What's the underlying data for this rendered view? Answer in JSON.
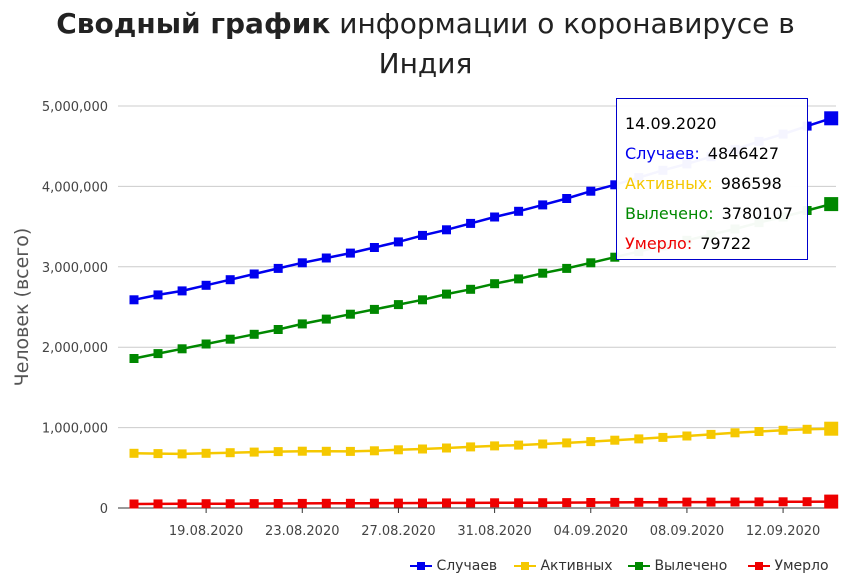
{
  "title_bold": "Сводный график",
  "title_rest": " информации о коронавирусе в",
  "title_line2": "Индия",
  "chart_data": {
    "type": "line",
    "ylabel": "Человек (всего)",
    "xlabel": "",
    "ylim": [
      0,
      5000000
    ],
    "yticks": [
      "0",
      "1,000,000",
      "2,000,000",
      "3,000,000",
      "4,000,000",
      "5,000,000"
    ],
    "xticks": [
      "19.08.2020",
      "23.08.2020",
      "27.08.2020",
      "31.08.2020",
      "04.09.2020",
      "08.09.2020",
      "12.09.2020"
    ],
    "x": [
      "16.08.2020",
      "17.08.2020",
      "18.08.2020",
      "19.08.2020",
      "20.08.2020",
      "21.08.2020",
      "22.08.2020",
      "23.08.2020",
      "24.08.2020",
      "25.08.2020",
      "26.08.2020",
      "27.08.2020",
      "28.08.2020",
      "29.08.2020",
      "30.08.2020",
      "31.08.2020",
      "01.09.2020",
      "02.09.2020",
      "03.09.2020",
      "04.09.2020",
      "05.09.2020",
      "06.09.2020",
      "07.09.2020",
      "08.09.2020",
      "09.09.2020",
      "10.09.2020",
      "11.09.2020",
      "12.09.2020",
      "13.09.2020",
      "14.09.2020"
    ],
    "grid": true,
    "legend_position": "bottom-right",
    "series": [
      {
        "name": "Случаев",
        "color": "#0000ee",
        "values": [
          2590000,
          2650000,
          2700000,
          2770000,
          2840000,
          2910000,
          2980000,
          3050000,
          3110000,
          3170000,
          3240000,
          3310000,
          3390000,
          3460000,
          3540000,
          3620000,
          3690000,
          3770000,
          3850000,
          3940000,
          4020000,
          4110000,
          4200000,
          4280000,
          4370000,
          4460000,
          4560000,
          4650000,
          4750000,
          4846427
        ]
      },
      {
        "name": "Активных",
        "color": "#f5c800",
        "values": [
          680000,
          676000,
          673000,
          680000,
          688000,
          695000,
          701000,
          706000,
          705000,
          704000,
          712000,
          724000,
          734000,
          746000,
          760000,
          772000,
          782000,
          796000,
          810000,
          826000,
          843000,
          860000,
          878000,
          895000,
          915000,
          935000,
          951000,
          966000,
          979000,
          986598
        ]
      },
      {
        "name": "Вылечено",
        "color": "#008800",
        "values": [
          1860000,
          1920000,
          1980000,
          2040000,
          2100000,
          2160000,
          2220000,
          2290000,
          2350000,
          2410000,
          2470000,
          2530000,
          2590000,
          2660000,
          2720000,
          2790000,
          2850000,
          2920000,
          2980000,
          3050000,
          3120000,
          3190000,
          3260000,
          3330000,
          3400000,
          3470000,
          3550000,
          3620000,
          3700000,
          3780107
        ]
      },
      {
        "name": "Умерло",
        "color": "#ee0000",
        "values": [
          50000,
          51000,
          52000,
          53000,
          54000,
          55000,
          56000,
          57000,
          58000,
          59000,
          60000,
          61000,
          62000,
          63000,
          64000,
          64500,
          65000,
          66000,
          67000,
          68000,
          69500,
          70500,
          71500,
          73000,
          74000,
          75000,
          76000,
          77500,
          78500,
          79722
        ]
      }
    ],
    "tooltip": {
      "date": "14.09.2020",
      "rows": [
        {
          "label": "Случаев:",
          "value": "4846427",
          "color": "#0000ee"
        },
        {
          "label": "Активных:",
          "value": "986598",
          "color": "#f5c800"
        },
        {
          "label": "Вылечено:",
          "value": "3780107",
          "color": "#008800"
        },
        {
          "label": "Умерло:",
          "value": "79722",
          "color": "#ee0000"
        }
      ]
    }
  }
}
